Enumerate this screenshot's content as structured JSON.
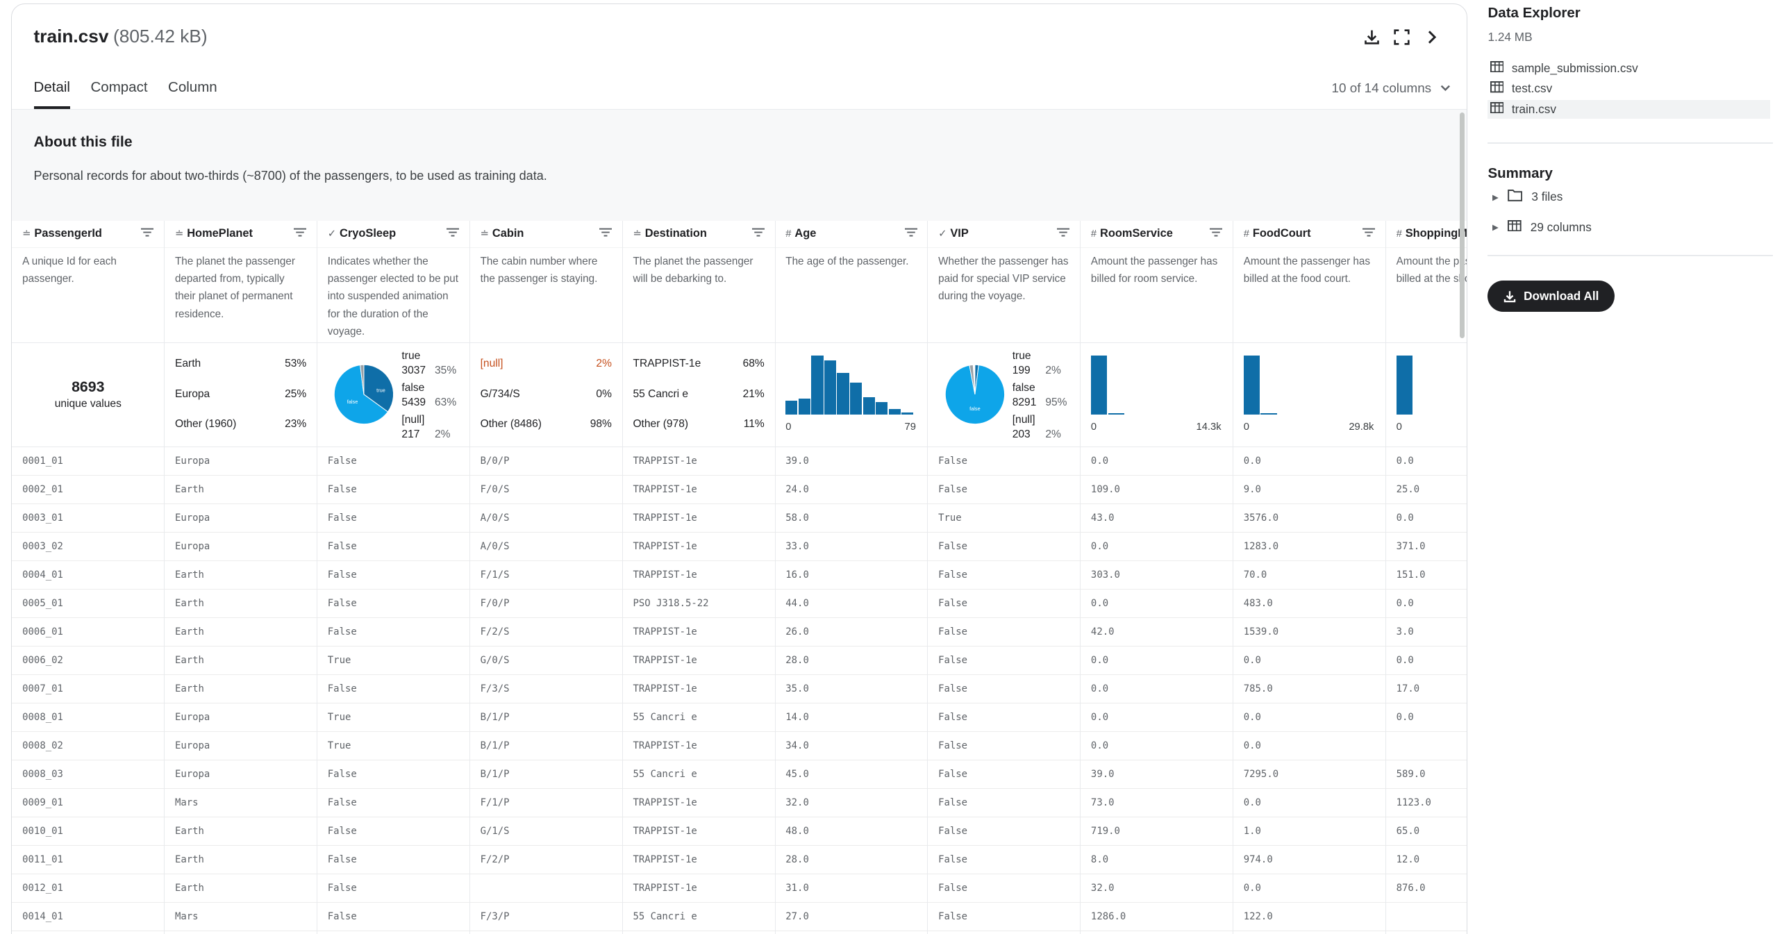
{
  "file": {
    "name": "train.csv",
    "size": "(805.42 kB)"
  },
  "icons": {
    "download": "download-icon",
    "expand": "fullscreen-icon",
    "collapse": "chevron-right-icon"
  },
  "tabs": [
    "Detail",
    "Compact",
    "Column"
  ],
  "column_selector": "10 of 14 columns",
  "about": {
    "title": "About this file",
    "text": "Personal records for about two-thirds (~8700) of the passengers, to be used as training data."
  },
  "columns": [
    {
      "name": "PassengerId",
      "type_icon": "string-icon",
      "desc": "A unique Id for each passenger.",
      "stat": {
        "kind": "unique",
        "value": "8693",
        "label": "unique values"
      }
    },
    {
      "name": "HomePlanet",
      "type_icon": "string-icon",
      "desc": "The planet the passenger departed from, typically their planet of permanent residence.",
      "stat": {
        "kind": "categories",
        "items": [
          {
            "label": "Earth",
            "pct": "53%"
          },
          {
            "label": "Europa",
            "pct": "25%"
          },
          {
            "label": "Other (1960)",
            "pct": "23%"
          }
        ]
      }
    },
    {
      "name": "CryoSleep",
      "type_icon": "boolean-icon",
      "desc": "Indicates whether the passenger elected to be put into suspended animation for the duration of the voyage.",
      "stat": {
        "kind": "pie",
        "items": [
          {
            "label": "true",
            "count": "3037",
            "pct": "35%"
          },
          {
            "label": "false",
            "count": "5439",
            "pct": "63%"
          },
          {
            "label": "[null]",
            "count": "217",
            "pct": "2%"
          }
        ],
        "slice_labels": [
          "true",
          "false"
        ],
        "fractions": [
          0.35,
          0.63,
          0.02
        ]
      }
    },
    {
      "name": "Cabin",
      "type_icon": "string-icon",
      "desc": "The cabin number where the passenger is staying.",
      "stat": {
        "kind": "categories",
        "items": [
          {
            "label": "[null]",
            "pct": "2%",
            "warn": true
          },
          {
            "label": "G/734/S",
            "pct": "0%"
          },
          {
            "label": "Other (8486)",
            "pct": "98%"
          }
        ]
      }
    },
    {
      "name": "Destination",
      "type_icon": "string-icon",
      "desc": "The planet the passenger will be debarking to.",
      "stat": {
        "kind": "categories",
        "items": [
          {
            "label": "TRAPPIST-1e",
            "pct": "68%"
          },
          {
            "label": "55 Cancri e",
            "pct": "21%"
          },
          {
            "label": "Other (978)",
            "pct": "11%"
          }
        ]
      }
    },
    {
      "name": "Age",
      "type_icon": "number-icon",
      "desc": "The age of the passenger.",
      "stat": {
        "kind": "histogram",
        "min": "0",
        "max": "79",
        "fractions": [
          0.24,
          0.27,
          1.0,
          0.92,
          0.71,
          0.55,
          0.3,
          0.22,
          0.1,
          0.04
        ]
      }
    },
    {
      "name": "VIP",
      "type_icon": "boolean-icon",
      "desc": "Whether the passenger has paid for special VIP service during the voyage.",
      "stat": {
        "kind": "pie",
        "items": [
          {
            "label": "true",
            "count": "199",
            "pct": "2%"
          },
          {
            "label": "false",
            "count": "8291",
            "pct": "95%"
          },
          {
            "label": "[null]",
            "count": "203",
            "pct": "2%"
          }
        ],
        "slice_labels": [
          "false"
        ],
        "fractions": [
          0.02,
          0.95,
          0.02
        ]
      }
    },
    {
      "name": "RoomService",
      "type_icon": "number-icon",
      "desc": "Amount the passenger has billed for room service.",
      "stat": {
        "kind": "histogram",
        "min": "0",
        "max": "14.3k",
        "fractions": [
          1.0,
          0.03
        ]
      }
    },
    {
      "name": "FoodCourt",
      "type_icon": "number-icon",
      "desc": "Amount the passenger has billed at the food court.",
      "stat": {
        "kind": "histogram",
        "min": "0",
        "max": "29.8k",
        "fractions": [
          1.0,
          0.03
        ]
      }
    },
    {
      "name": "ShoppingMall",
      "type_icon": "number-icon",
      "desc": "Amount the passenger has billed at the shopping mall.",
      "stat": {
        "kind": "histogram",
        "min": "0",
        "max": "",
        "fractions": [
          1.0
        ]
      }
    }
  ],
  "rows": [
    [
      "0001_01",
      "Europa",
      "False",
      "B/0/P",
      "TRAPPIST-1e",
      "39.0",
      "False",
      "0.0",
      "0.0",
      "0.0"
    ],
    [
      "0002_01",
      "Earth",
      "False",
      "F/0/S",
      "TRAPPIST-1e",
      "24.0",
      "False",
      "109.0",
      "9.0",
      "25.0"
    ],
    [
      "0003_01",
      "Europa",
      "False",
      "A/0/S",
      "TRAPPIST-1e",
      "58.0",
      "True",
      "43.0",
      "3576.0",
      "0.0"
    ],
    [
      "0003_02",
      "Europa",
      "False",
      "A/0/S",
      "TRAPPIST-1e",
      "33.0",
      "False",
      "0.0",
      "1283.0",
      "371.0"
    ],
    [
      "0004_01",
      "Earth",
      "False",
      "F/1/S",
      "TRAPPIST-1e",
      "16.0",
      "False",
      "303.0",
      "70.0",
      "151.0"
    ],
    [
      "0005_01",
      "Earth",
      "False",
      "F/0/P",
      "PSO J318.5-22",
      "44.0",
      "False",
      "0.0",
      "483.0",
      "0.0"
    ],
    [
      "0006_01",
      "Earth",
      "False",
      "F/2/S",
      "TRAPPIST-1e",
      "26.0",
      "False",
      "42.0",
      "1539.0",
      "3.0"
    ],
    [
      "0006_02",
      "Earth",
      "True",
      "G/0/S",
      "TRAPPIST-1e",
      "28.0",
      "False",
      "0.0",
      "0.0",
      "0.0"
    ],
    [
      "0007_01",
      "Earth",
      "False",
      "F/3/S",
      "TRAPPIST-1e",
      "35.0",
      "False",
      "0.0",
      "785.0",
      "17.0"
    ],
    [
      "0008_01",
      "Europa",
      "True",
      "B/1/P",
      "55 Cancri e",
      "14.0",
      "False",
      "0.0",
      "0.0",
      "0.0"
    ],
    [
      "0008_02",
      "Europa",
      "True",
      "B/1/P",
      "TRAPPIST-1e",
      "34.0",
      "False",
      "0.0",
      "0.0",
      ""
    ],
    [
      "0008_03",
      "Europa",
      "False",
      "B/1/P",
      "55 Cancri e",
      "45.0",
      "False",
      "39.0",
      "7295.0",
      "589.0"
    ],
    [
      "0009_01",
      "Mars",
      "False",
      "F/1/P",
      "TRAPPIST-1e",
      "32.0",
      "False",
      "73.0",
      "0.0",
      "1123.0"
    ],
    [
      "0010_01",
      "Earth",
      "False",
      "G/1/S",
      "TRAPPIST-1e",
      "48.0",
      "False",
      "719.0",
      "1.0",
      "65.0"
    ],
    [
      "0011_01",
      "Earth",
      "False",
      "F/2/P",
      "TRAPPIST-1e",
      "28.0",
      "False",
      "8.0",
      "974.0",
      "12.0"
    ],
    [
      "0012_01",
      "Earth",
      "False",
      "",
      "TRAPPIST-1e",
      "31.0",
      "False",
      "32.0",
      "0.0",
      "876.0"
    ],
    [
      "0014_01",
      "Mars",
      "False",
      "F/3/P",
      "55 Cancri e",
      "27.0",
      "False",
      "1286.0",
      "122.0",
      ""
    ]
  ],
  "sidebar": {
    "title": "Data Explorer",
    "size": "1.24 MB",
    "files": [
      "sample_submission.csv",
      "test.csv",
      "train.csv"
    ],
    "selected_file": "train.csv",
    "summary_title": "Summary",
    "summary": [
      {
        "icon": "folder-icon",
        "label": "3 files"
      },
      {
        "icon": "table-icon",
        "label": "29 columns"
      }
    ],
    "download_label": "Download All"
  },
  "colors": {
    "accent": "#0f6ea8",
    "pie_light": "#0ea5e9",
    "warn": "#c5501e",
    "button": "#202124"
  }
}
